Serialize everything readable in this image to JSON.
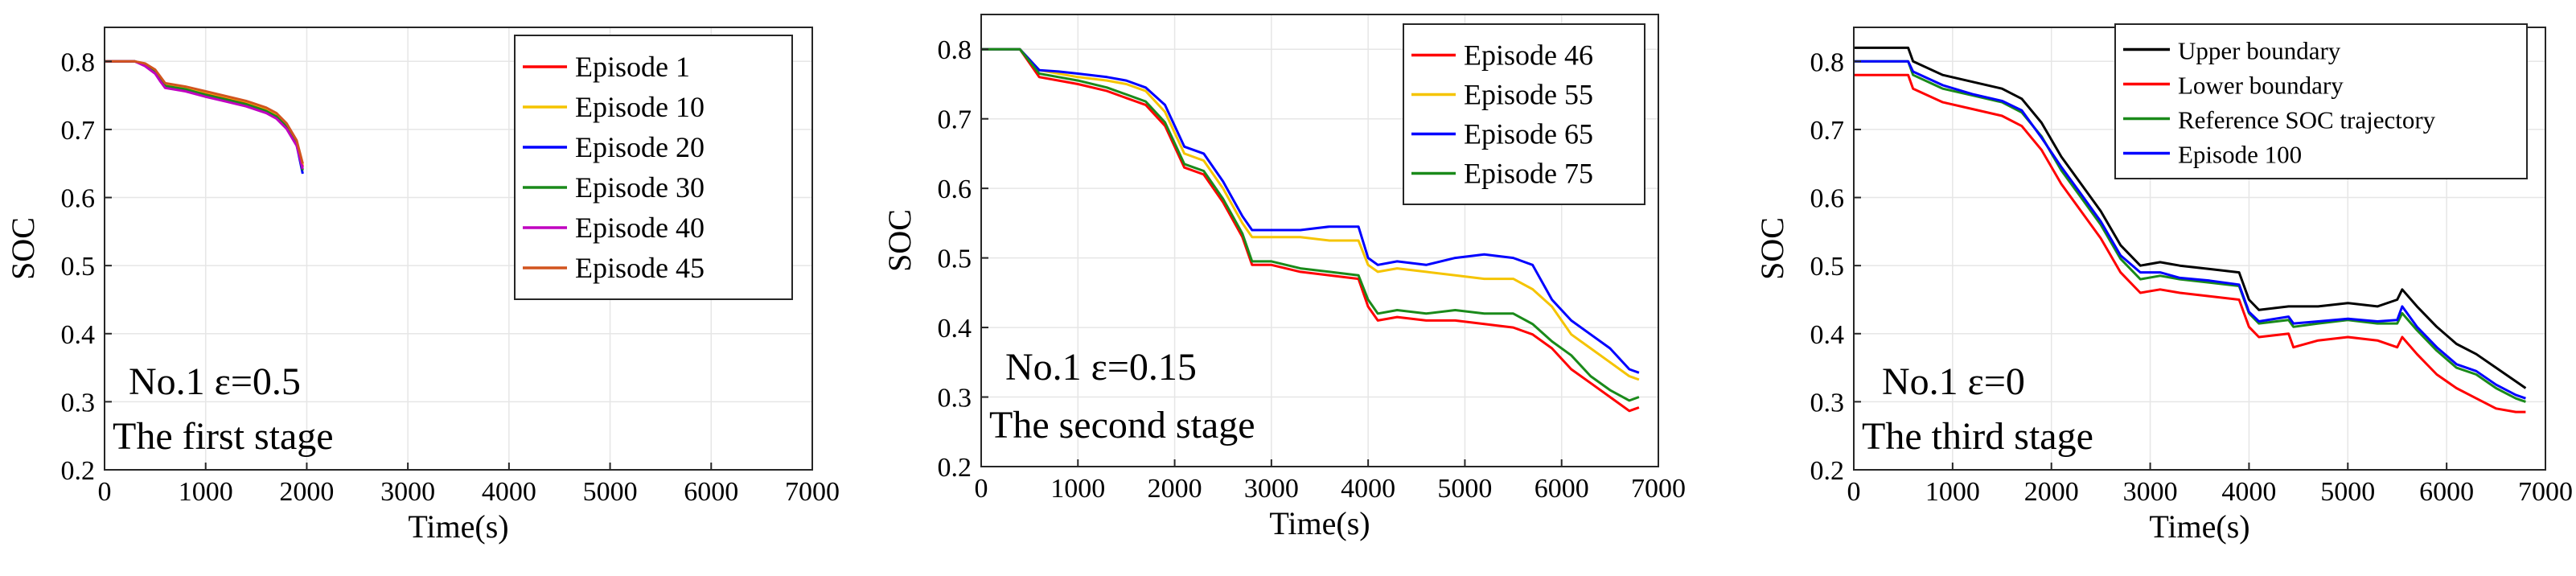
{
  "chart_data": [
    {
      "type": "line",
      "xlabel": "Time(s)",
      "ylabel": "SOC",
      "xlim": [
        0,
        7000
      ],
      "ylim": [
        0.2,
        0.85
      ],
      "xticks": [
        0,
        1000,
        2000,
        3000,
        4000,
        5000,
        6000,
        7000
      ],
      "yticks": [
        0.2,
        0.3,
        0.4,
        0.5,
        0.6,
        0.7,
        0.8
      ],
      "grid": true,
      "legend_position": "top-right",
      "annotations": [
        "No.1 ε=0.5",
        "The first stage"
      ],
      "series": [
        {
          "name": "Episode 1",
          "color": "#ff0000",
          "x": [
            0,
            300,
            400,
            500,
            550,
            600,
            800,
            1000,
            1200,
            1400,
            1600,
            1700,
            1800,
            1900,
            1960
          ],
          "y": [
            0.8,
            0.8,
            0.795,
            0.785,
            0.775,
            0.765,
            0.76,
            0.752,
            0.745,
            0.738,
            0.728,
            0.72,
            0.705,
            0.68,
            0.645
          ]
        },
        {
          "name": "Episode 10",
          "color": "#f5c400",
          "x": [
            0,
            300,
            400,
            500,
            550,
            600,
            800,
            1000,
            1200,
            1400,
            1600,
            1700,
            1800,
            1900,
            1960
          ],
          "y": [
            0.8,
            0.8,
            0.796,
            0.787,
            0.777,
            0.767,
            0.762,
            0.755,
            0.748,
            0.741,
            0.731,
            0.723,
            0.708,
            0.683,
            0.648
          ]
        },
        {
          "name": "Episode 20",
          "color": "#0000ff",
          "x": [
            0,
            300,
            400,
            500,
            550,
            600,
            800,
            1000,
            1200,
            1400,
            1600,
            1700,
            1800,
            1900,
            1960
          ],
          "y": [
            0.8,
            0.8,
            0.794,
            0.783,
            0.772,
            0.762,
            0.757,
            0.749,
            0.742,
            0.735,
            0.725,
            0.717,
            0.702,
            0.677,
            0.635
          ]
        },
        {
          "name": "Episode 30",
          "color": "#1a8a1a",
          "x": [
            0,
            300,
            400,
            500,
            550,
            600,
            800,
            1000,
            1200,
            1400,
            1600,
            1700,
            1800,
            1900,
            1960
          ],
          "y": [
            0.8,
            0.8,
            0.795,
            0.786,
            0.774,
            0.764,
            0.759,
            0.751,
            0.744,
            0.737,
            0.727,
            0.719,
            0.704,
            0.679,
            0.64
          ]
        },
        {
          "name": "Episode 40",
          "color": "#c000c0",
          "x": [
            0,
            300,
            400,
            500,
            550,
            600,
            800,
            1000,
            1200,
            1400,
            1600,
            1700,
            1800,
            1900,
            1960
          ],
          "y": [
            0.8,
            0.8,
            0.793,
            0.782,
            0.771,
            0.761,
            0.756,
            0.748,
            0.741,
            0.734,
            0.724,
            0.716,
            0.701,
            0.676,
            0.642
          ]
        },
        {
          "name": "Episode 45",
          "color": "#d2541e",
          "x": [
            0,
            300,
            400,
            500,
            550,
            600,
            800,
            1000,
            1200,
            1400,
            1600,
            1700,
            1800,
            1900,
            1960
          ],
          "y": [
            0.8,
            0.8,
            0.797,
            0.788,
            0.778,
            0.768,
            0.763,
            0.756,
            0.749,
            0.742,
            0.732,
            0.724,
            0.709,
            0.684,
            0.65
          ]
        }
      ]
    },
    {
      "type": "line",
      "xlabel": "Time(s)",
      "ylabel": "SOC",
      "xlim": [
        0,
        7000
      ],
      "ylim": [
        0.2,
        0.85
      ],
      "xticks": [
        0,
        1000,
        2000,
        3000,
        4000,
        5000,
        6000,
        7000
      ],
      "yticks": [
        0.2,
        0.3,
        0.4,
        0.5,
        0.6,
        0.7,
        0.8
      ],
      "grid": true,
      "legend_position": "top-right",
      "annotations": [
        "No.1 ε=0.15",
        "The second stage"
      ],
      "series": [
        {
          "name": "Episode 46",
          "color": "#ff0000",
          "x": [
            0,
            400,
            600,
            800,
            1000,
            1300,
            1500,
            1700,
            1900,
            2100,
            2300,
            2500,
            2700,
            2800,
            3000,
            3300,
            3600,
            3900,
            4000,
            4100,
            4300,
            4600,
            4900,
            5200,
            5500,
            5700,
            5900,
            6100,
            6300,
            6500,
            6700,
            6800
          ],
          "y": [
            0.8,
            0.8,
            0.76,
            0.755,
            0.75,
            0.74,
            0.73,
            0.72,
            0.69,
            0.63,
            0.62,
            0.58,
            0.53,
            0.49,
            0.49,
            0.48,
            0.475,
            0.47,
            0.43,
            0.41,
            0.415,
            0.41,
            0.41,
            0.405,
            0.4,
            0.39,
            0.37,
            0.34,
            0.32,
            0.3,
            0.28,
            0.285
          ]
        },
        {
          "name": "Episode 55",
          "color": "#f5c400",
          "x": [
            0,
            400,
            600,
            800,
            1000,
            1300,
            1500,
            1700,
            1900,
            2100,
            2300,
            2500,
            2700,
            2800,
            3000,
            3300,
            3600,
            3900,
            4000,
            4100,
            4300,
            4600,
            4900,
            5200,
            5500,
            5700,
            5900,
            6100,
            6300,
            6500,
            6700,
            6800
          ],
          "y": [
            0.8,
            0.8,
            0.77,
            0.765,
            0.76,
            0.755,
            0.75,
            0.74,
            0.71,
            0.65,
            0.64,
            0.6,
            0.55,
            0.53,
            0.53,
            0.53,
            0.525,
            0.525,
            0.49,
            0.48,
            0.485,
            0.48,
            0.475,
            0.47,
            0.47,
            0.455,
            0.43,
            0.39,
            0.37,
            0.35,
            0.33,
            0.325
          ]
        },
        {
          "name": "Episode 65",
          "color": "#0000ff",
          "x": [
            0,
            400,
            600,
            800,
            1000,
            1300,
            1500,
            1700,
            1900,
            2100,
            2300,
            2500,
            2700,
            2800,
            3000,
            3300,
            3600,
            3900,
            4000,
            4100,
            4300,
            4600,
            4900,
            5200,
            5500,
            5700,
            5900,
            6100,
            6300,
            6500,
            6700,
            6800
          ],
          "y": [
            0.8,
            0.8,
            0.77,
            0.768,
            0.765,
            0.76,
            0.755,
            0.745,
            0.72,
            0.66,
            0.65,
            0.61,
            0.56,
            0.54,
            0.54,
            0.54,
            0.545,
            0.545,
            0.5,
            0.49,
            0.495,
            0.49,
            0.5,
            0.505,
            0.5,
            0.49,
            0.44,
            0.41,
            0.39,
            0.37,
            0.34,
            0.335
          ]
        },
        {
          "name": "Episode 75",
          "color": "#1a8a1a",
          "x": [
            0,
            400,
            600,
            800,
            1000,
            1300,
            1500,
            1700,
            1900,
            2100,
            2300,
            2500,
            2700,
            2800,
            3000,
            3300,
            3600,
            3900,
            4000,
            4100,
            4300,
            4600,
            4900,
            5200,
            5500,
            5700,
            5900,
            6100,
            6300,
            6500,
            6700,
            6800
          ],
          "y": [
            0.8,
            0.8,
            0.765,
            0.76,
            0.755,
            0.745,
            0.735,
            0.725,
            0.695,
            0.635,
            0.625,
            0.585,
            0.535,
            0.495,
            0.495,
            0.485,
            0.48,
            0.475,
            0.44,
            0.42,
            0.425,
            0.42,
            0.425,
            0.42,
            0.42,
            0.405,
            0.38,
            0.36,
            0.33,
            0.31,
            0.295,
            0.3
          ]
        }
      ]
    },
    {
      "type": "line",
      "xlabel": "Time(s)",
      "ylabel": "SOC",
      "xlim": [
        0,
        7000
      ],
      "ylim": [
        0.2,
        0.85
      ],
      "xticks": [
        0,
        1000,
        2000,
        3000,
        4000,
        5000,
        6000,
        7000
      ],
      "yticks": [
        0.2,
        0.3,
        0.4,
        0.5,
        0.6,
        0.7,
        0.8
      ],
      "grid": true,
      "legend_position": "top-right",
      "annotations": [
        "No.1 ε=0",
        "The third stage"
      ],
      "series": [
        {
          "name": "Upper boundary",
          "color": "#000000",
          "x": [
            0,
            550,
            600,
            900,
            1200,
            1500,
            1700,
            1900,
            2100,
            2300,
            2500,
            2700,
            2900,
            3100,
            3300,
            3600,
            3900,
            4000,
            4100,
            4400,
            4450,
            4700,
            5000,
            5300,
            5500,
            5550,
            5700,
            5900,
            6100,
            6300,
            6500,
            6700,
            6800
          ],
          "y": [
            0.82,
            0.82,
            0.8,
            0.78,
            0.77,
            0.76,
            0.745,
            0.71,
            0.66,
            0.62,
            0.58,
            0.53,
            0.5,
            0.505,
            0.5,
            0.495,
            0.49,
            0.45,
            0.435,
            0.44,
            0.44,
            0.44,
            0.445,
            0.44,
            0.45,
            0.465,
            0.44,
            0.41,
            0.385,
            0.37,
            0.35,
            0.33,
            0.32
          ]
        },
        {
          "name": "Lower boundary",
          "color": "#ff0000",
          "x": [
            0,
            550,
            600,
            900,
            1200,
            1500,
            1700,
            1900,
            2100,
            2300,
            2500,
            2700,
            2900,
            3100,
            3300,
            3600,
            3900,
            4000,
            4100,
            4400,
            4450,
            4700,
            5000,
            5300,
            5500,
            5550,
            5700,
            5900,
            6100,
            6300,
            6500,
            6700,
            6800
          ],
          "y": [
            0.78,
            0.78,
            0.76,
            0.74,
            0.73,
            0.72,
            0.705,
            0.67,
            0.62,
            0.58,
            0.54,
            0.49,
            0.46,
            0.465,
            0.46,
            0.455,
            0.45,
            0.41,
            0.395,
            0.4,
            0.38,
            0.39,
            0.395,
            0.39,
            0.38,
            0.395,
            0.37,
            0.34,
            0.32,
            0.305,
            0.29,
            0.285,
            0.285
          ]
        },
        {
          "name": "Reference SOC trajectory",
          "color": "#1a8a1a",
          "x": [
            0,
            550,
            600,
            900,
            1200,
            1500,
            1700,
            1900,
            2100,
            2300,
            2500,
            2700,
            2900,
            3100,
            3300,
            3600,
            3900,
            4000,
            4100,
            4400,
            4450,
            4700,
            5000,
            5300,
            5500,
            5550,
            5700,
            5900,
            6100,
            6300,
            6500,
            6700,
            6800
          ],
          "y": [
            0.8,
            0.8,
            0.78,
            0.76,
            0.75,
            0.74,
            0.725,
            0.69,
            0.64,
            0.6,
            0.56,
            0.51,
            0.48,
            0.485,
            0.48,
            0.475,
            0.47,
            0.43,
            0.415,
            0.42,
            0.41,
            0.415,
            0.42,
            0.415,
            0.415,
            0.43,
            0.405,
            0.375,
            0.35,
            0.34,
            0.32,
            0.305,
            0.3
          ]
        },
        {
          "name": "Episode 100",
          "color": "#0000ff",
          "x": [
            0,
            550,
            600,
            900,
            1200,
            1500,
            1700,
            1900,
            2100,
            2300,
            2500,
            2700,
            2900,
            3100,
            3300,
            3600,
            3900,
            4000,
            4100,
            4400,
            4450,
            4700,
            5000,
            5300,
            5500,
            5550,
            5700,
            5900,
            6100,
            6300,
            6500,
            6700,
            6800
          ],
          "y": [
            0.8,
            0.8,
            0.785,
            0.765,
            0.752,
            0.742,
            0.728,
            0.688,
            0.645,
            0.605,
            0.565,
            0.515,
            0.49,
            0.49,
            0.482,
            0.478,
            0.472,
            0.432,
            0.418,
            0.425,
            0.415,
            0.418,
            0.422,
            0.418,
            0.42,
            0.44,
            0.41,
            0.38,
            0.355,
            0.345,
            0.325,
            0.31,
            0.305
          ]
        }
      ]
    }
  ]
}
